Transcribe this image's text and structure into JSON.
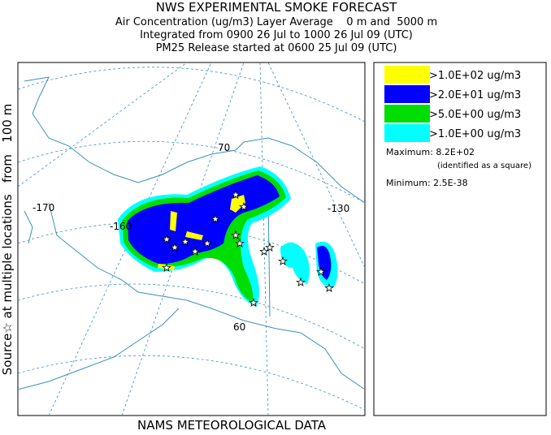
{
  "header": {
    "title": "NWS EXPERIMENTAL SMOKE FORECAST",
    "lines": [
      "Air Concentration (ug/m3) Layer Average    0 m and  5000 m",
      "Integrated from 0900 26 Jul to 1000 26 Jul 09 (UTC)",
      "PM25 Release started at 0600 25 Jul 09 (UTC)"
    ]
  },
  "legend": {
    "items": [
      {
        "label": ">1.0E+02 ug/m3",
        "color": "#ffff00"
      },
      {
        "label": ">2.0E+01 ug/m3",
        "color": "#0000ff"
      },
      {
        "label": ">5.0E+00 ug/m3",
        "color": "#00dd00"
      },
      {
        "label": ">1.0E+00 ug/m3",
        "color": "#00ffff"
      }
    ],
    "maximum": "Maximum: 8.2E+02",
    "maximum_note": "(identified as a square)",
    "minimum": "Minimum: 2.5E-38"
  },
  "map": {
    "labels": [
      "-170",
      "-160",
      "70",
      "-130",
      "60"
    ]
  },
  "side_label": "Source☆ at multiple locations   from   100 m",
  "footer": "NAMS METEOROLOGICAL DATA"
}
